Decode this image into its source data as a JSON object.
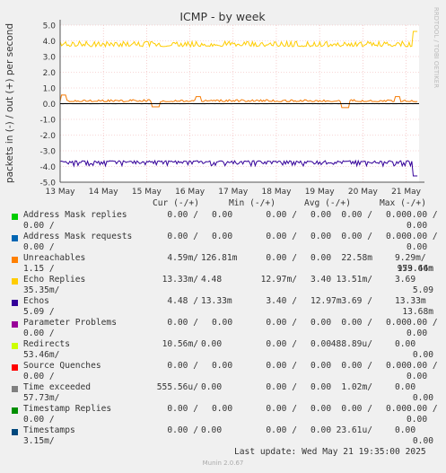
{
  "chart_data": {
    "type": "line",
    "title": "ICMP - by week",
    "ylabel": "packets in (-) / out (+) per second",
    "side_label": "RRDTOOL / TOBI OETIKER",
    "x_ticks": [
      "13 May",
      "14 May",
      "15 May",
      "16 May",
      "17 May",
      "18 May",
      "19 May",
      "20 May",
      "21 May"
    ],
    "y_ticks": [
      "5.0",
      "4.0",
      "3.0",
      "2.0",
      "1.0",
      "0.0",
      "-1.0",
      "-2.0",
      "-3.0",
      "-4.0",
      "-5.0"
    ],
    "ylim": [
      -5,
      5
    ],
    "xlim_days": [
      13,
      21.3
    ],
    "grid": true,
    "series": [
      {
        "name": "Echo Replies",
        "color": "#ffcc00",
        "level": 3.7,
        "spread": 0.45,
        "end": 4.6
      },
      {
        "name": "Unreachables",
        "color": "#f57900",
        "level": 0.15,
        "spread": 0.18,
        "spikes": [
          [
            13.08,
            0.55
          ],
          [
            16.2,
            0.45
          ],
          [
            20.8,
            0.45
          ]
        ],
        "dips": [
          [
            15.2,
            -0.2
          ],
          [
            19.6,
            -0.25
          ]
        ]
      },
      {
        "name": "Time exceeded",
        "color": "#888888",
        "level": 0.0,
        "spread": 0.02
      },
      {
        "name": "Echos",
        "color": "#330099",
        "level": -3.7,
        "spread": 0.45,
        "end": -4.6
      }
    ]
  },
  "legend": {
    "headers": {
      "cur": "Cur (-/+)",
      "min": "Min (-/+)",
      "avg": "Avg (-/+)",
      "max": "Max (-/+)"
    },
    "rows": [
      {
        "label": "Address Mask replies",
        "color": "#00cc00",
        "cur_a": "0.00 /",
        "cur_b": "0.00",
        "min_a": "0.00 /",
        "min_b": "0.00",
        "avg_a": "0.00 /",
        "avg_b": "0.00",
        "max_a": "0.00 /",
        "max_b": "0.00"
      },
      {
        "label": "Address Mask requests",
        "color": "#0066b3",
        "cur_a": "0.00 /",
        "cur_b": "0.00",
        "min_a": "0.00 /",
        "min_b": "0.00",
        "avg_a": "0.00 /",
        "avg_b": "0.00",
        "max_a": "0.00 /",
        "max_b": "0.00"
      },
      {
        "label": "Unreachables",
        "color": "#ff8000",
        "cur_a": "4.59m/",
        "cur_b": "126.81m",
        "min_a": "0.00 /",
        "min_b": "0.00",
        "avg_a": "22.58m",
        "avg_b": "9.29m/",
        "max_a": "159.66m",
        "max_b": "973.44m",
        "wrap": "1.15 /"
      },
      {
        "label": "Echo Replies",
        "color": "#ffcc00",
        "cur_a": "13.33m/",
        "cur_b": "4.48",
        "min_a": "12.97m/",
        "min_b": "3.40",
        "avg_a": "13.51m/",
        "avg_b": "3.69",
        "max_a": "5.09",
        "max_b": "",
        "wrap": "35.35m/"
      },
      {
        "label": "Echos",
        "color": "#330099",
        "cur_a": "4.48 /",
        "cur_b": "13.33m",
        "min_a": "3.40 /",
        "min_b": "12.97m",
        "avg_a": "3.69 /",
        "avg_b": "13.33m",
        "max_a": "13.68m",
        "max_b": "",
        "wrap": "5.09 /"
      },
      {
        "label": "Parameter Problems",
        "color": "#990099",
        "cur_a": "0.00 /",
        "cur_b": "0.00",
        "min_a": "0.00 /",
        "min_b": "0.00",
        "avg_a": "0.00 /",
        "avg_b": "0.00",
        "max_a": "0.00 /",
        "max_b": "0.00"
      },
      {
        "label": "Redirects",
        "color": "#ccff00",
        "cur_a": "10.56m/",
        "cur_b": "0.00",
        "min_a": "0.00 /",
        "min_b": "0.00",
        "avg_a": "488.89u/",
        "avg_b": "0.00",
        "max_a": "0.00",
        "max_b": "",
        "wrap": "53.46m/"
      },
      {
        "label": "Source Quenches",
        "color": "#ff0000",
        "cur_a": "0.00 /",
        "cur_b": "0.00",
        "min_a": "0.00 /",
        "min_b": "0.00",
        "avg_a": "0.00 /",
        "avg_b": "0.00",
        "max_a": "0.00 /",
        "max_b": "0.00"
      },
      {
        "label": "Time exceeded",
        "color": "#808080",
        "cur_a": "555.56u/",
        "cur_b": "0.00",
        "min_a": "0.00 /",
        "min_b": "0.00",
        "avg_a": "1.02m/",
        "avg_b": "0.00",
        "max_a": "0.00",
        "max_b": "",
        "wrap": "57.73m/"
      },
      {
        "label": "Timestamp Replies",
        "color": "#008f00",
        "cur_a": "0.00 /",
        "cur_b": "0.00",
        "min_a": "0.00 /",
        "min_b": "0.00",
        "avg_a": "0.00 /",
        "avg_b": "0.00",
        "max_a": "0.00 /",
        "max_b": "0.00"
      },
      {
        "label": "Timestamps",
        "color": "#00487d",
        "cur_a": "0.00 /",
        "cur_b": "0.00",
        "min_a": "0.00 /",
        "min_b": "0.00",
        "avg_a": "23.61u/",
        "avg_b": "0.00",
        "max_a": "0.00",
        "max_b": "",
        "wrap": "3.15m/"
      }
    ]
  },
  "last_update": "Last update: Wed May 21 19:35:00 2025",
  "footer": "Munin 2.0.67"
}
